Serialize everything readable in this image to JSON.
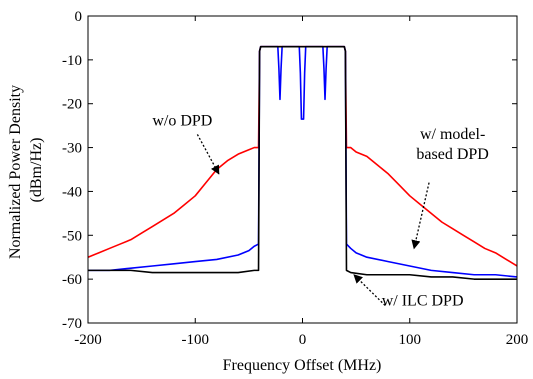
{
  "chart_data": {
    "type": "line",
    "title": "",
    "xlabel": "Frequency Offset (MHz)",
    "ylabel_lines": [
      "Normalized Power Density",
      "(dBm/Hz)"
    ],
    "xlim": [
      -200,
      200
    ],
    "ylim": [
      -70,
      0
    ],
    "xticks": [
      -200,
      -100,
      0,
      100,
      200
    ],
    "yticks": [
      0,
      -10,
      -20,
      -30,
      -40,
      -50,
      -60,
      -70
    ],
    "grid": false,
    "legend": "none",
    "series": [
      {
        "color": "#ff0000",
        "x": [
          -200,
          -190,
          -180,
          -170,
          -160,
          -150,
          -140,
          -130,
          -120,
          -110,
          -100,
          -90,
          -80,
          -70,
          -60,
          -50,
          -45,
          -41,
          -40,
          -39,
          39,
          40,
          41,
          45,
          50,
          60,
          70,
          80,
          90,
          100,
          110,
          120,
          130,
          140,
          150,
          160,
          170,
          180,
          190,
          200
        ],
        "y": [
          -55,
          -54,
          -53,
          -52,
          -51,
          -49.5,
          -48,
          -46.5,
          -45,
          -43,
          -41,
          -38,
          -35,
          -33,
          -31.5,
          -30.5,
          -30,
          -30,
          -8,
          -7,
          -7,
          -8,
          -30,
          -30,
          -31,
          -32,
          -34,
          -36,
          -38.5,
          -41,
          -43,
          -45,
          -47,
          -48.5,
          -50,
          -51.5,
          -53,
          -54,
          -55.5,
          -57
        ]
      },
      {
        "color": "#0000ff",
        "x": [
          -200,
          -180,
          -160,
          -140,
          -120,
          -100,
          -80,
          -60,
          -50,
          -45,
          -41,
          -40,
          -39,
          -23,
          -22,
          -21,
          -20,
          -19,
          -3,
          -2,
          -1,
          1,
          2,
          3,
          19,
          20,
          21,
          22,
          23,
          39,
          40,
          41,
          45,
          50,
          60,
          80,
          100,
          120,
          140,
          160,
          180,
          200
        ],
        "y": [
          -58,
          -58,
          -57.5,
          -57,
          -56.5,
          -56,
          -55.5,
          -54.5,
          -53.5,
          -52.5,
          -52,
          -8,
          -7,
          -7,
          -12,
          -19,
          -12,
          -7,
          -7,
          -13,
          -23.5,
          -23.5,
          -13,
          -7,
          -7,
          -12,
          -19,
          -12,
          -7,
          -7,
          -8,
          -52,
          -53,
          -54,
          -55,
          -56,
          -57,
          -58,
          -58.5,
          -59,
          -59,
          -59.5
        ]
      },
      {
        "color": "#000000",
        "x": [
          -200,
          -180,
          -160,
          -140,
          -120,
          -100,
          -80,
          -60,
          -45,
          -41,
          -40,
          -39,
          39,
          40,
          41,
          45,
          60,
          80,
          100,
          120,
          140,
          160,
          180,
          200
        ],
        "y": [
          -58,
          -58,
          -58,
          -58.5,
          -58.5,
          -58.5,
          -58.5,
          -58.5,
          -58,
          -58,
          -8,
          -7,
          -7,
          -8,
          -58,
          -58.5,
          -59,
          -59,
          -59,
          -59.5,
          -59.5,
          -60,
          -60,
          -60
        ]
      }
    ],
    "annotations": [
      {
        "lines": [
          "w/o DPD"
        ],
        "text_at": [
          -140,
          -25
        ],
        "text_anchor": "start",
        "arrow_from": [
          -98,
          -27
        ],
        "arrow_to": [
          -78,
          -36
        ]
      },
      {
        "lines": [
          "w/ model-",
          "based DPD"
        ],
        "text_at": [
          140,
          -28
        ],
        "text_anchor": "middle",
        "arrow_from": [
          118,
          -38
        ],
        "arrow_to": [
          104,
          -53
        ]
      },
      {
        "lines": [
          "w/ ILC DPD"
        ],
        "text_at": [
          112,
          -66
        ],
        "text_anchor": "middle",
        "arrow_from": [
          77,
          -66
        ],
        "arrow_to": [
          48,
          -59
        ]
      }
    ]
  }
}
